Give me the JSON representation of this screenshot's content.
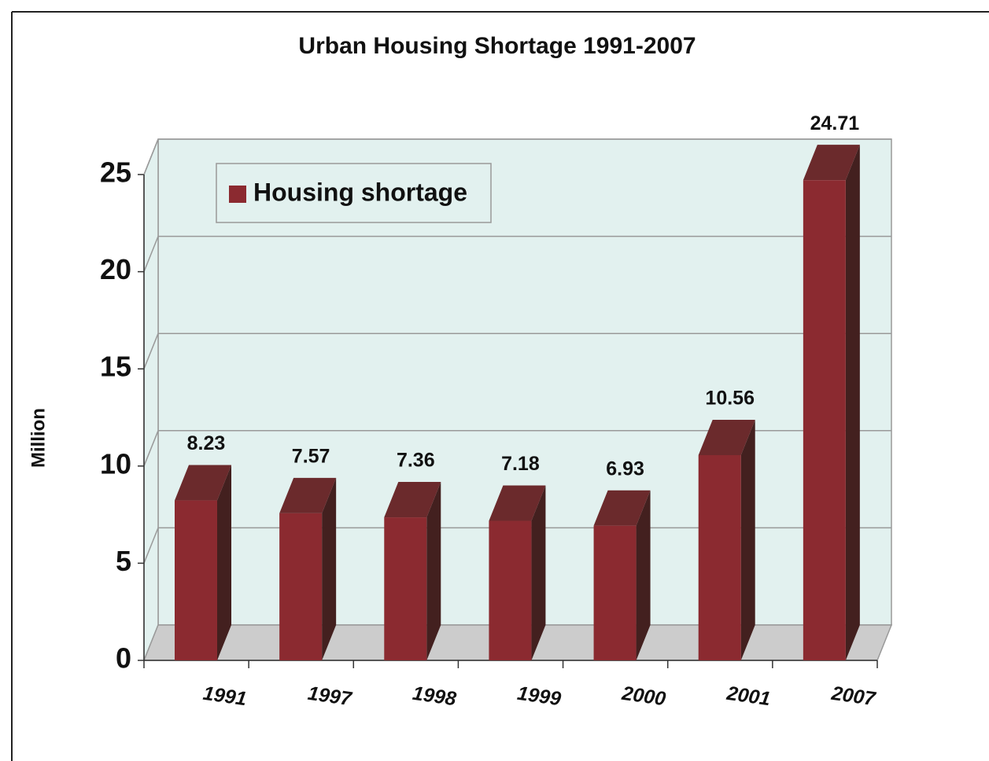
{
  "chart_data": {
    "type": "bar",
    "title": "Urban Housing Shortage 1991-2007",
    "ylabel": "Million",
    "categories": [
      "1991",
      "1997",
      "1998",
      "1999",
      "2000",
      "2001",
      "2007"
    ],
    "series": [
      {
        "name": "Housing shortage",
        "color": "#8b2a30",
        "values": [
          8.23,
          7.57,
          7.36,
          7.18,
          6.93,
          10.56,
          24.71
        ]
      }
    ],
    "ylim": [
      0,
      25
    ],
    "yticks": [
      0,
      5,
      10,
      15,
      20,
      25
    ],
    "grid": true,
    "legend": "upper left"
  }
}
